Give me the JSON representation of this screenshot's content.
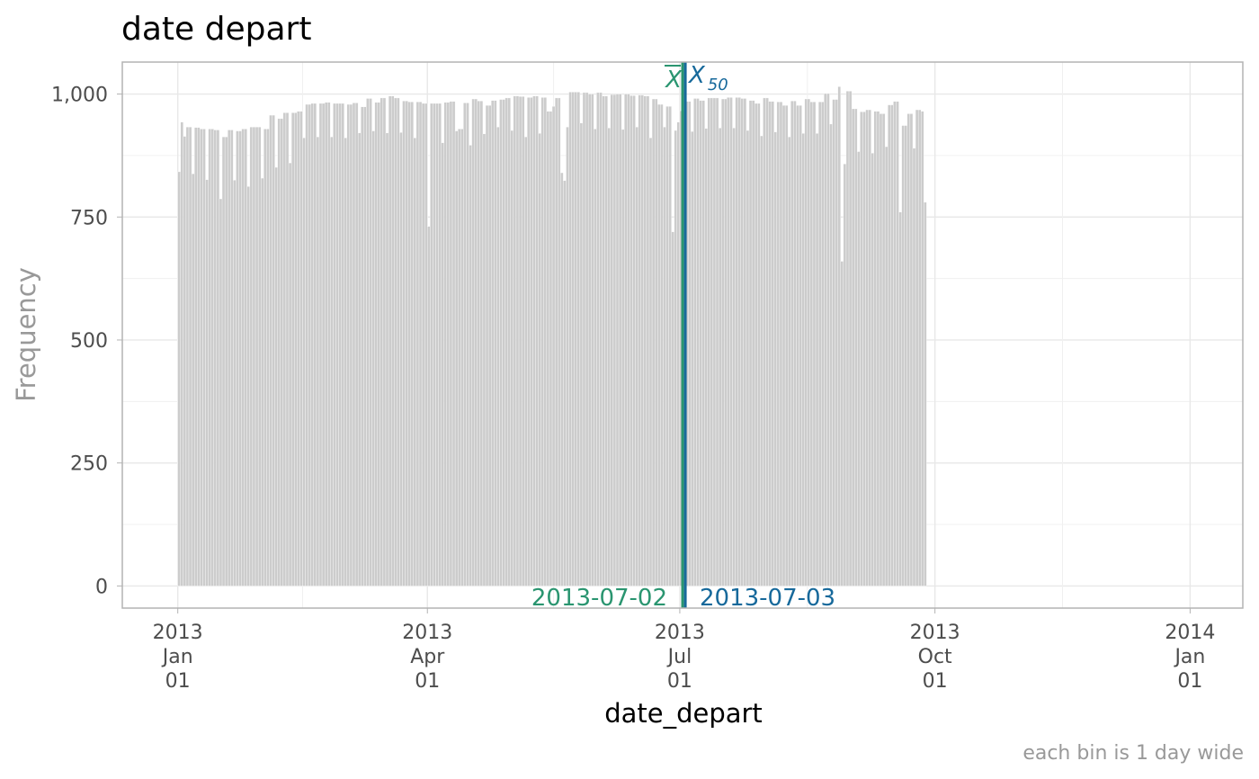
{
  "chart_data": {
    "type": "histogram",
    "title": "date depart",
    "xlabel": "date_depart",
    "ylabel": "Frequency",
    "caption": "each bin is 1 day wide",
    "ylim": [
      -45,
      1065
    ],
    "y_ticks": [
      {
        "value": 0,
        "label": "0"
      },
      {
        "value": 250,
        "label": "250"
      },
      {
        "value": 500,
        "label": "500"
      },
      {
        "value": 750,
        "label": "750"
      },
      {
        "value": 1000,
        "label": "1,000"
      }
    ],
    "x_range": [
      "2012-12-12",
      "2014-01-20"
    ],
    "x_ticks": [
      {
        "date": "2013-01-01",
        "lines": [
          "2013",
          "Jan",
          "01"
        ]
      },
      {
        "date": "2013-04-01",
        "lines": [
          "2013",
          "Apr",
          "01"
        ]
      },
      {
        "date": "2013-07-01",
        "lines": [
          "2013",
          "Jul",
          "01"
        ]
      },
      {
        "date": "2013-10-01",
        "lines": [
          "2013",
          "Oct",
          "01"
        ]
      },
      {
        "date": "2014-01-01",
        "lines": [
          "2014",
          "Jan",
          "01"
        ]
      }
    ],
    "bin_width_days": 1,
    "bins_start": "2013-01-01",
    "bar_color": "#cccccc",
    "frequencies": [
      842,
      943,
      914,
      933,
      933,
      838,
      932,
      932,
      929,
      929,
      826,
      929,
      929,
      927,
      927,
      787,
      913,
      913,
      927,
      927,
      825,
      925,
      925,
      929,
      929,
      812,
      933,
      933,
      933,
      933,
      829,
      929,
      929,
      957,
      957,
      851,
      950,
      950,
      962,
      962,
      860,
      962,
      962,
      965,
      965,
      911,
      979,
      979,
      981,
      981,
      913,
      981,
      981,
      983,
      983,
      913,
      981,
      981,
      981,
      981,
      911,
      979,
      979,
      982,
      982,
      921,
      974,
      974,
      991,
      991,
      925,
      983,
      983,
      992,
      992,
      921,
      996,
      996,
      992,
      992,
      922,
      986,
      986,
      984,
      984,
      911,
      984,
      984,
      981,
      981,
      731,
      981,
      981,
      981,
      981,
      901,
      983,
      983,
      985,
      985,
      925,
      929,
      929,
      982,
      982,
      896,
      990,
      990,
      986,
      986,
      919,
      977,
      977,
      987,
      987,
      933,
      989,
      989,
      992,
      992,
      926,
      996,
      996,
      995,
      995,
      913,
      993,
      993,
      996,
      996,
      920,
      993,
      993,
      965,
      965,
      975,
      992,
      992,
      840,
      824,
      933,
      1004,
      1004,
      1004,
      1004,
      941,
      1003,
      1003,
      1000,
      1000,
      929,
      1003,
      1003,
      996,
      996,
      931,
      999,
      999,
      1000,
      1000,
      928,
      1000,
      1000,
      997,
      997,
      933,
      998,
      998,
      996,
      996,
      911,
      990,
      990,
      979,
      979,
      933,
      975,
      975,
      720,
      926,
      943,
      966,
      966,
      985,
      985,
      924,
      991,
      991,
      987,
      987,
      930,
      992,
      992,
      992,
      992,
      931,
      990,
      990,
      993,
      993,
      931,
      993,
      993,
      991,
      991,
      926,
      987,
      987,
      981,
      981,
      915,
      992,
      992,
      985,
      985,
      923,
      984,
      984,
      977,
      977,
      913,
      986,
      986,
      977,
      977,
      920,
      990,
      990,
      984,
      984,
      920,
      984,
      984,
      1001,
      1001,
      939,
      989,
      989,
      1015,
      660,
      858,
      1006,
      1006,
      970,
      970,
      883,
      964,
      964,
      968,
      968,
      880,
      965,
      965,
      960,
      960,
      893,
      978,
      978,
      985,
      985,
      760,
      936,
      936,
      960,
      960,
      890,
      968,
      968,
      965,
      780
    ],
    "mean": {
      "symbol": "X",
      "label": "2013-07-02",
      "color": "#2a9570"
    },
    "median": {
      "symbol": "X",
      "subscript": "50",
      "label": "2013-07-03",
      "color": "#17699b"
    }
  }
}
